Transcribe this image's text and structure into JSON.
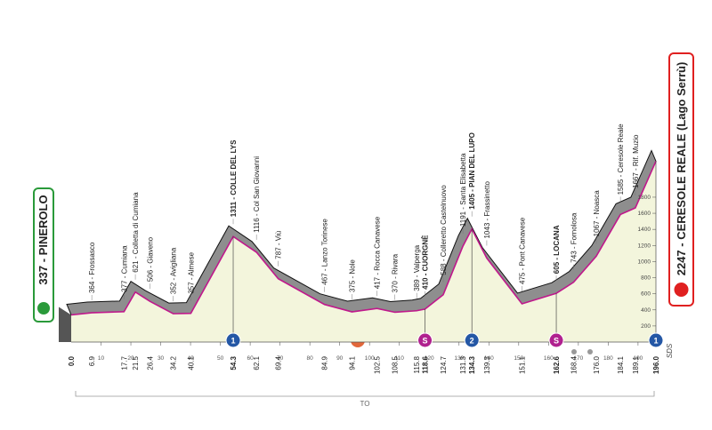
{
  "chart_data": {
    "type": "area",
    "x": [
      0,
      6.9,
      17.7,
      21.5,
      26.4,
      34.2,
      40.1,
      54.3,
      62.1,
      69.4,
      84.9,
      94.1,
      102.5,
      108.5,
      115.8,
      118.6,
      124.7,
      131.3,
      134.3,
      139.3,
      151.1,
      162.6,
      168.4,
      176.0,
      184.1,
      189.1,
      196.0
    ],
    "x_labels": [
      "0.0",
      "6.9",
      "17.7",
      "21.5",
      "26.4",
      "34.2",
      "40.1",
      "54.3",
      "62.1",
      "69.4",
      "84.9",
      "94.1",
      "102.5",
      "108.5",
      "115.8",
      "118.6",
      "124.7",
      "131.3",
      "134.3",
      "139.3",
      "151.1",
      "162.6",
      "168.4",
      "176.0",
      "184.1",
      "189.1",
      "196.0"
    ],
    "values": [
      337,
      364,
      377,
      621,
      506,
      352,
      357,
      1311,
      1116,
      787,
      467,
      375,
      417,
      370,
      389,
      410,
      588,
      1191,
      1405,
      1043,
      475,
      605,
      743,
      1067,
      1585,
      1667,
      2247
    ],
    "names": [
      null,
      "364 - Frossasco",
      "377 - Cumiana",
      "621 - Colletta di Cumiana",
      "506 - Giaveno",
      "352 - Avigliana",
      "357 - Almese",
      "1311 - COLLE DEL LYS",
      "1116 - Col San Giovanni",
      "787 - Viù",
      "467 - Lanzo Torinese",
      "375 - Nole",
      "417 - Rocca Canavese",
      "370 - Rivara",
      "389 - Valperga",
      "410 - CUORGNÈ",
      "588 - Colleretto Castelnuovo",
      "1191 - Santa Elisabetta",
      "1405 - PIAN DEL LUPO",
      "1043 - Frassinetto",
      "475 - Pont Canavese",
      "605 - LOCANA",
      "743 - Fornolosa",
      "1067 - Noasca",
      "1585 - Ceresole Reale",
      "1667 - Rif. Muzio",
      null
    ],
    "emphasis": [
      true,
      false,
      false,
      false,
      false,
      false,
      false,
      true,
      false,
      false,
      false,
      false,
      false,
      false,
      false,
      true,
      false,
      false,
      true,
      false,
      false,
      true,
      false,
      false,
      false,
      false,
      true
    ],
    "badges": [
      null,
      null,
      null,
      null,
      null,
      null,
      null,
      "1",
      null,
      null,
      null,
      null,
      null,
      null,
      null,
      "S",
      null,
      null,
      "2",
      null,
      null,
      "S",
      null,
      null,
      null,
      null,
      "1"
    ],
    "start_label": "337 - PINEROLO",
    "finish_label": "2247 - CERESOLE REALE (Lago Serrù)",
    "footer_label": "TO",
    "credit": "SDS",
    "xlim": [
      0,
      196
    ],
    "xticks": [
      10,
      20,
      30,
      40,
      50,
      60,
      70,
      80,
      90,
      100,
      110,
      120,
      130,
      140,
      150,
      160,
      170,
      180,
      190
    ],
    "ylim": [
      0,
      2400
    ],
    "yticks": [
      200,
      400,
      600,
      800,
      1000,
      1200,
      1400,
      1600,
      1800
    ],
    "color": "#c0188c",
    "fill": "#f3f5dc",
    "relief_color": "#8e8e8e"
  }
}
